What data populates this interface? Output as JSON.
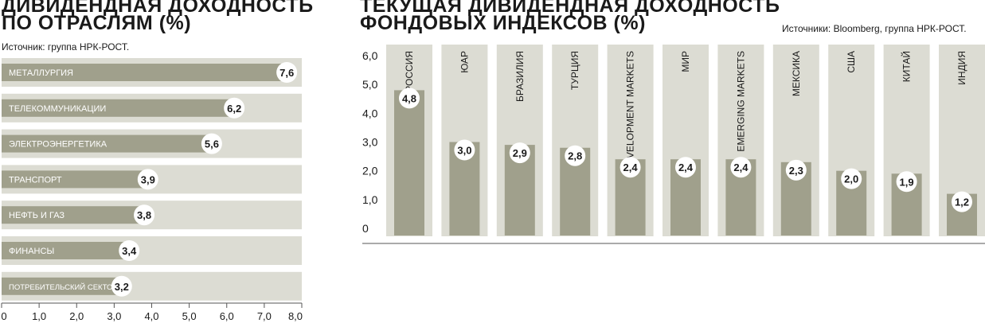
{
  "chart_data": [
    {
      "type": "bar",
      "orientation": "horizontal",
      "title": "ДИВИДЕНДНАЯ ДОХОДНОСТЬ ПО ОТРАСЛЯМ (%)",
      "title_lines": [
        "ДИВИДЕНДНАЯ ДОХОДНОСТЬ",
        "ПО ОТРАСЛЯМ (%)"
      ],
      "source": "Источник: группа НРК-РОСТ.",
      "categories": [
        "МЕТАЛЛУРГИЯ",
        "ТЕЛЕКОММУНИКАЦИИ",
        "ЭЛЕКТРОЭНЕРГЕТИКА",
        "ТРАНСПОРТ",
        "НЕФТЬ И ГАЗ",
        "ФИНАНСЫ",
        "ПОТРЕБИТЕЛЬСКИЙ СЕКТОР"
      ],
      "values": [
        7.6,
        6.2,
        5.6,
        3.9,
        3.8,
        3.4,
        3.2
      ],
      "value_labels": [
        "7,6",
        "6,2",
        "5,6",
        "3,9",
        "3,8",
        "3,4",
        "3,2"
      ],
      "xlim": [
        0,
        8
      ],
      "ticks": [
        "0",
        "1,0",
        "2,0",
        "3,0",
        "4,0",
        "5,0",
        "6,0",
        "7,0",
        "8,0"
      ]
    },
    {
      "type": "bar",
      "orientation": "vertical",
      "title": "ТЕКУЩАЯ ДИВИДЕНДНАЯ ДОХОДНОСТЬ ФОНДОВЫХ ИНДЕКСОВ (%)",
      "title_lines": [
        "ТЕКУЩАЯ ДИВИДЕНДНАЯ ДОХОДНОСТЬ",
        "ФОНДОВЫХ ИНДЕКСОВ (%)"
      ],
      "source": "Источники: Bloomberg, группа НРК-РОСТ.",
      "categories": [
        "РОССИЯ",
        "ЮАР",
        "БРАЗИЛИЯ",
        "ТУРЦИЯ",
        "DEVELOPMENT MARKETS",
        "МИР",
        "EMERGING MARKETS",
        "МЕКСИКА",
        "США",
        "КИТАЙ",
        "ИНДИЯ"
      ],
      "values": [
        4.8,
        3.0,
        2.9,
        2.8,
        2.4,
        2.4,
        2.4,
        2.3,
        2.0,
        1.9,
        1.2
      ],
      "value_labels": [
        "4,8",
        "3,0",
        "2,9",
        "2,8",
        "2,4",
        "2,4",
        "2,4",
        "2,3",
        "2,0",
        "1,9",
        "1,2"
      ],
      "ylim": [
        0,
        6
      ],
      "ticks": [
        "0",
        "1,0",
        "2,0",
        "3,0",
        "4,0",
        "5,0",
        "6,0"
      ]
    }
  ],
  "colors": {
    "background_band": "#dcdcd3",
    "bar": "#a0a08c",
    "label_bubble": "#ffffff",
    "text": "#1a1a1a"
  }
}
